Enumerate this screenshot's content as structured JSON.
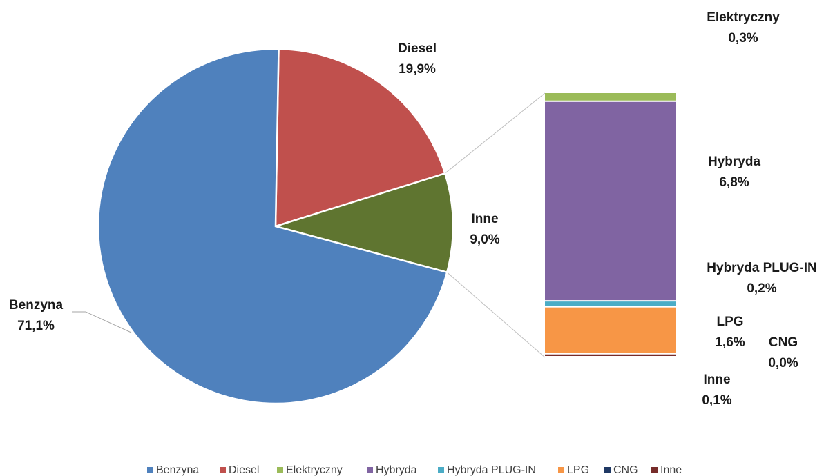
{
  "chart_data": {
    "type": "pie",
    "subtype": "bar-of-pie",
    "title": "",
    "pie": {
      "slices": [
        {
          "name": "Benzyna",
          "value": 71.1,
          "label": "71,1%",
          "color": "#4F81BD"
        },
        {
          "name": "Diesel",
          "value": 19.9,
          "label": "19,9%",
          "color": "#C0504D"
        },
        {
          "name": "Inne",
          "value": 9.0,
          "label": "9,0%",
          "color": "#5F7530"
        }
      ]
    },
    "bar": {
      "segments": [
        {
          "name": "Elektryczny",
          "value": 0.3,
          "label": "0,3%",
          "color": "#9BBB59"
        },
        {
          "name": "Hybryda",
          "value": 6.8,
          "label": "6,8%",
          "color": "#8064A2"
        },
        {
          "name": "Hybryda PLUG-IN",
          "value": 0.2,
          "label": "0,2%",
          "color": "#4BACC6"
        },
        {
          "name": "LPG",
          "value": 1.6,
          "label": "1,6%",
          "color": "#F79646"
        },
        {
          "name": "CNG",
          "value": 0.0,
          "label": "0,0%",
          "color": "#1F3864"
        },
        {
          "name": "Inne",
          "value": 0.1,
          "label": "0,1%",
          "color": "#772C2A"
        }
      ]
    },
    "legend": {
      "position": "bottom",
      "entries": [
        {
          "name": "Benzyna",
          "color": "#4F81BD"
        },
        {
          "name": "Diesel",
          "color": "#C0504D"
        },
        {
          "name": "Elektryczny",
          "color": "#9BBB59"
        },
        {
          "name": "Hybryda",
          "color": "#8064A2"
        },
        {
          "name": "Hybryda PLUG-IN",
          "color": "#4BACC6"
        },
        {
          "name": "LPG",
          "color": "#F79646"
        },
        {
          "name": "CNG",
          "color": "#1F3864"
        },
        {
          "name": "Inne",
          "color": "#772C2A"
        }
      ]
    }
  }
}
